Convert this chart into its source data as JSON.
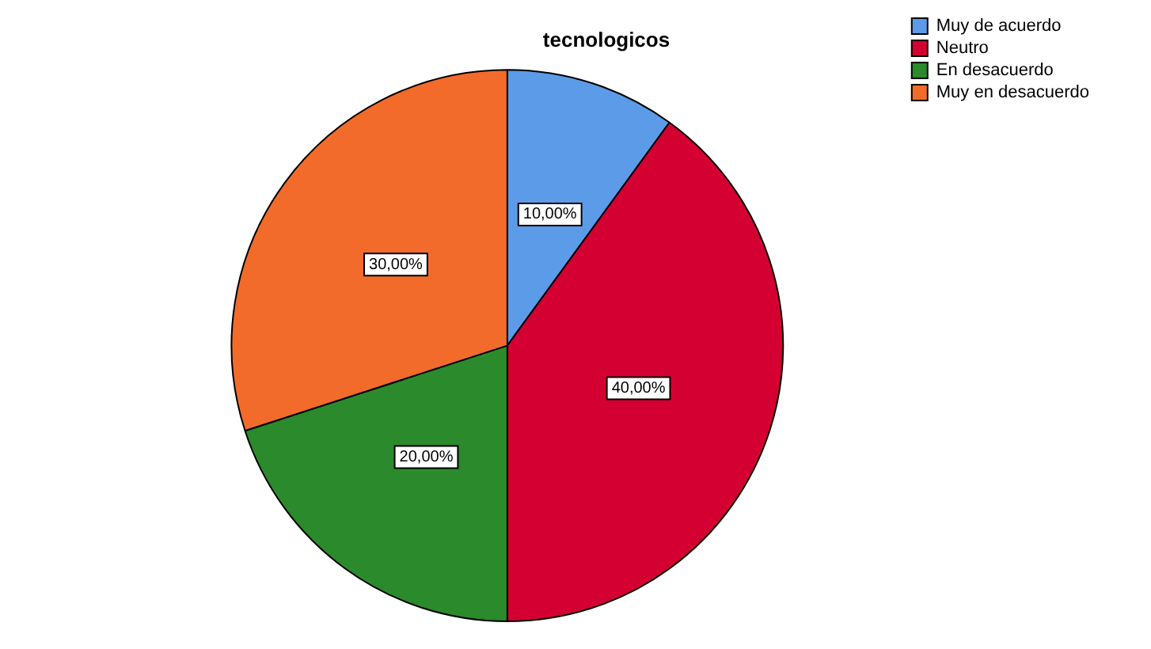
{
  "chart_data": {
    "type": "pie",
    "title": "tecnologicos",
    "categories": [
      "Muy de acuerdo",
      "Neutro",
      "En desacuerdo",
      "Muy en desacuerdo"
    ],
    "values": [
      10,
      40,
      20,
      30
    ],
    "colors": [
      "#5b9be8",
      "#d50032",
      "#2b8a2b",
      "#f26b2b"
    ],
    "value_labels": [
      "10,00%",
      "40,00%",
      "20,00%",
      "30,00%"
    ],
    "legend": "top right"
  }
}
